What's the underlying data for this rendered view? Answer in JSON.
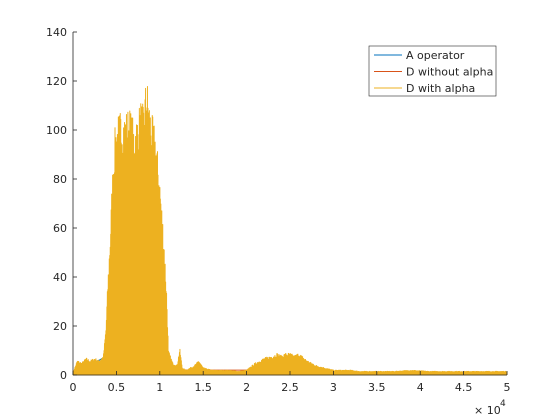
{
  "chart_data": {
    "type": "line",
    "xlim": [
      0,
      50000
    ],
    "ylim": [
      0,
      140
    ],
    "x_tick_labels": [
      "0",
      "0.5",
      "1",
      "1.5",
      "2",
      "2.5",
      "3",
      "3.5",
      "4",
      "4.5",
      "5"
    ],
    "x_tick_values": [
      0,
      5000,
      10000,
      15000,
      20000,
      25000,
      30000,
      35000,
      40000,
      45000,
      50000
    ],
    "x_exponent_base": "× 10",
    "x_exponent_power": "4",
    "y_tick_labels": [
      "0",
      "20",
      "40",
      "60",
      "80",
      "100",
      "120",
      "140"
    ],
    "y_tick_values": [
      0,
      20,
      40,
      60,
      80,
      100,
      120,
      140
    ],
    "grid": false,
    "legend_placement": "top-right",
    "series": [
      {
        "name": "A operator",
        "color": "#0072BD",
        "points": [
          [
            0,
            0
          ],
          [
            1000,
            4
          ],
          [
            2000,
            5
          ],
          [
            3000,
            6
          ],
          [
            3500,
            7
          ],
          [
            4000,
            8
          ],
          [
            4500,
            3
          ],
          [
            5000,
            2
          ],
          [
            7000,
            2
          ],
          [
            9000,
            3
          ],
          [
            11000,
            2
          ],
          [
            13000,
            1
          ],
          [
            15000,
            1
          ],
          [
            18000,
            1
          ],
          [
            20000,
            1
          ],
          [
            25000,
            1
          ],
          [
            30000,
            0.5
          ],
          [
            35000,
            0.5
          ],
          [
            40000,
            0.5
          ],
          [
            45000,
            0.5
          ],
          [
            50000,
            0.5
          ]
        ]
      },
      {
        "name": "D without alpha",
        "color": "#D95319",
        "points": [
          [
            0,
            0
          ],
          [
            1000,
            3
          ],
          [
            2000,
            4
          ],
          [
            3000,
            5
          ],
          [
            4000,
            6
          ],
          [
            5000,
            5
          ],
          [
            8000,
            5
          ],
          [
            11000,
            3
          ],
          [
            13000,
            2
          ],
          [
            15000,
            2
          ],
          [
            20000,
            2
          ],
          [
            25000,
            3
          ],
          [
            30000,
            1
          ],
          [
            35000,
            1
          ],
          [
            40000,
            1
          ],
          [
            45000,
            1
          ],
          [
            50000,
            1
          ]
        ]
      },
      {
        "name": "D with alpha",
        "color": "#EDB120",
        "envelope": [
          [
            0,
            1
          ],
          [
            500,
            6
          ],
          [
            1000,
            5
          ],
          [
            1500,
            7
          ],
          [
            2000,
            6
          ],
          [
            2500,
            7
          ],
          [
            3000,
            6
          ],
          [
            3500,
            8
          ],
          [
            3800,
            20
          ],
          [
            4000,
            38
          ],
          [
            4300,
            60
          ],
          [
            4500,
            80
          ],
          [
            4800,
            100
          ],
          [
            5000,
            105
          ],
          [
            5500,
            109
          ],
          [
            6000,
            108
          ],
          [
            6500,
            110
          ],
          [
            7000,
            104
          ],
          [
            7500,
            108
          ],
          [
            7800,
            113
          ],
          [
            8100,
            110
          ],
          [
            8300,
            118
          ],
          [
            8500,
            123
          ],
          [
            8700,
            116
          ],
          [
            9000,
            108
          ],
          [
            9500,
            101
          ],
          [
            10000,
            82
          ],
          [
            10500,
            56
          ],
          [
            10800,
            34
          ],
          [
            11000,
            10
          ],
          [
            11500,
            5
          ],
          [
            12000,
            4
          ],
          [
            12300,
            11
          ],
          [
            12600,
            3
          ],
          [
            13000,
            2
          ],
          [
            13500,
            3
          ],
          [
            14000,
            4
          ],
          [
            14500,
            6
          ],
          [
            15000,
            3
          ],
          [
            16000,
            2
          ],
          [
            17000,
            2
          ],
          [
            18000,
            2
          ],
          [
            19000,
            1.5
          ],
          [
            20000,
            2
          ],
          [
            21000,
            5
          ],
          [
            21500,
            6
          ],
          [
            22000,
            7
          ],
          [
            23000,
            8
          ],
          [
            23500,
            9
          ],
          [
            24000,
            8
          ],
          [
            24500,
            9
          ],
          [
            25000,
            9
          ],
          [
            25500,
            8
          ],
          [
            26000,
            9
          ],
          [
            27000,
            6
          ],
          [
            28000,
            4
          ],
          [
            29000,
            3
          ],
          [
            30000,
            2
          ],
          [
            31000,
            2
          ],
          [
            32000,
            2
          ],
          [
            33000,
            1.5
          ],
          [
            35000,
            1.5
          ],
          [
            37000,
            1.5
          ],
          [
            39000,
            2
          ],
          [
            41000,
            1.5
          ],
          [
            43000,
            1.5
          ],
          [
            45000,
            1.5
          ],
          [
            47000,
            1.5
          ],
          [
            50000,
            1.5
          ]
        ]
      }
    ]
  }
}
